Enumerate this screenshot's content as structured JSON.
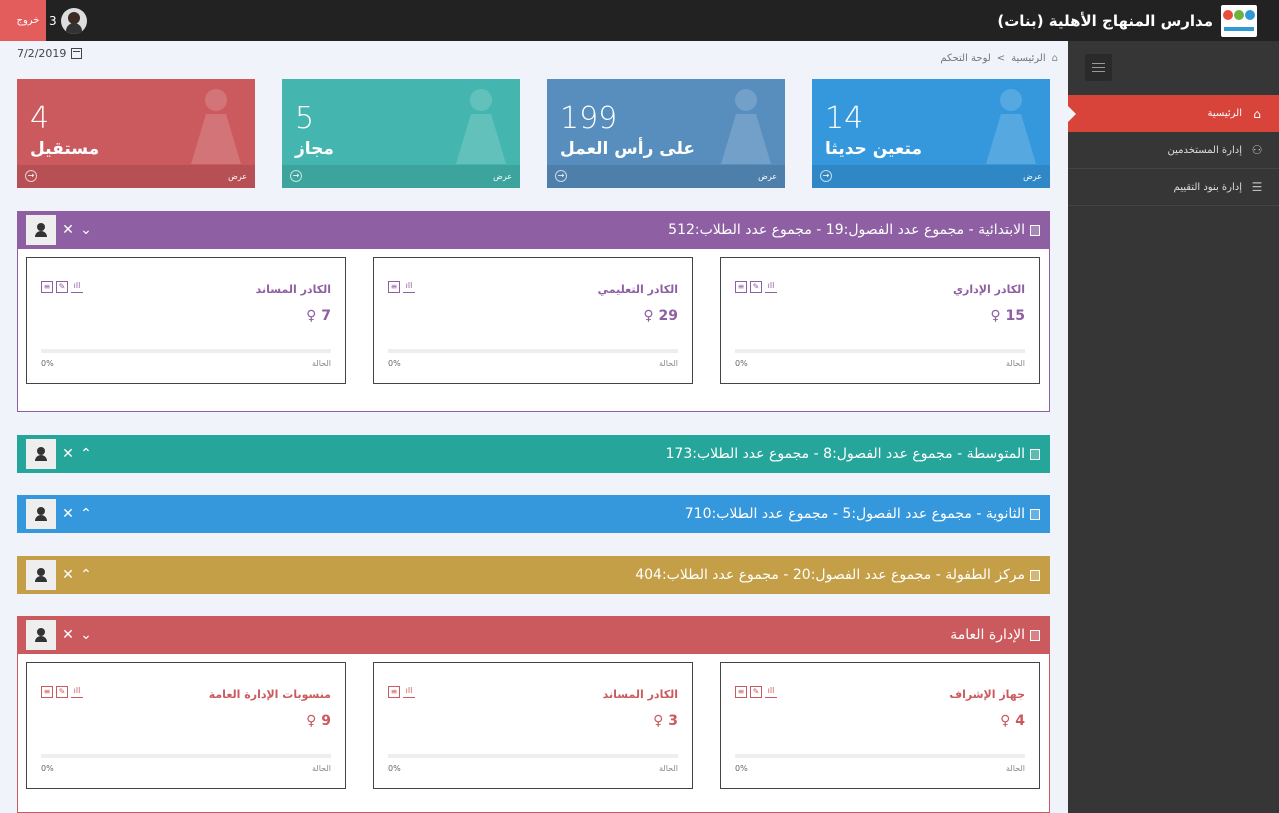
{
  "header": {
    "title": "مدارس المنهاج الأهلية (بنات)",
    "logout": "خروج",
    "notif_count": "3"
  },
  "date": "7/2/2019",
  "breadcrumb": {
    "home": "الرئيسية",
    "separator": ">",
    "current": "لوحة التحكم"
  },
  "sidebar": {
    "items": [
      {
        "label": "الرئيسية",
        "icon": "home-icon",
        "active": true
      },
      {
        "label": "إدارة المستخدمين",
        "icon": "user-icon",
        "active": false
      },
      {
        "label": "إدارة بنود التقييم",
        "icon": "list-icon",
        "active": false
      }
    ]
  },
  "colors": {
    "red": "#cb5a5e",
    "teal": "#45b6af",
    "slate": "#578ebe",
    "blue": "#3598dc",
    "purple": "#8e5fa2",
    "green": "#26a69a",
    "sky": "#3598dc",
    "gold": "#c49f47"
  },
  "tiles": [
    {
      "value": "4",
      "label": "مستقيل",
      "view": "عرض"
    },
    {
      "value": "5",
      "label": "مجاز",
      "view": "عرض"
    },
    {
      "value": "199",
      "label": "على رأس العمل",
      "view": "عرض"
    },
    {
      "value": "14",
      "label": "متعين حديثا",
      "view": "عرض"
    }
  ],
  "panels": [
    {
      "title": "الابتدائية - مجموع عدد الفصول:19 - مجموع عدد الطلاب:512",
      "expanded": true,
      "cards": [
        {
          "title": "الكادر الإداري",
          "count": "15",
          "status": "الحالة",
          "percent": "0%"
        },
        {
          "title": "الكادر التعليمي",
          "count": "29",
          "status": "الحالة",
          "percent": "0%"
        },
        {
          "title": "الكادر المساند",
          "count": "7",
          "status": "الحالة",
          "percent": "0%"
        }
      ]
    },
    {
      "title": "المتوسطة - مجموع عدد الفصول:8 - مجموع عدد الطلاب:173",
      "expanded": false
    },
    {
      "title": "الثانوية - مجموع عدد الفصول:5 - مجموع عدد الطلاب:710",
      "expanded": false
    },
    {
      "title": "مركز الطفولة - مجموع عدد الفصول:20 - مجموع عدد الطلاب:404",
      "expanded": false
    },
    {
      "title": "الإدارة العامة",
      "expanded": true,
      "cards": [
        {
          "title": "جهاز الإشراف",
          "count": "4",
          "status": "الحالة",
          "percent": "0%"
        },
        {
          "title": "الكادر المساند",
          "count": "3",
          "status": "الحالة",
          "percent": "0%"
        },
        {
          "title": "منسوبات الإدارة العامة",
          "count": "9",
          "status": "الحالة",
          "percent": "0%"
        }
      ]
    }
  ]
}
